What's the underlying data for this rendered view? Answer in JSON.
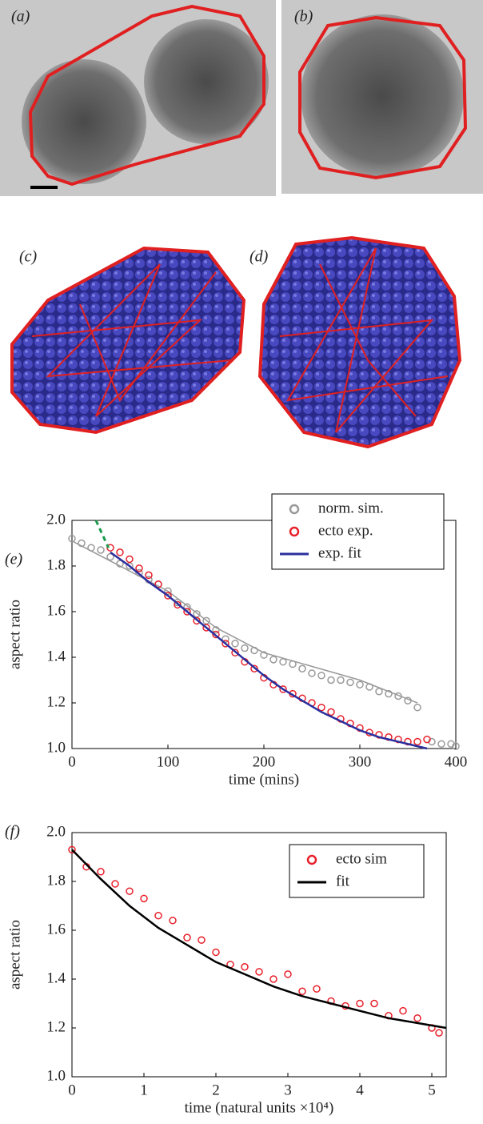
{
  "image_panels": [
    {
      "label": "(a)"
    },
    {
      "label": "(b)"
    },
    {
      "label": "(c)"
    },
    {
      "label": "(d)"
    }
  ],
  "chart_data": [
    {
      "type": "scatter",
      "panel_label": "(e)",
      "xlabel": "time (mins)",
      "ylabel": "aspect ratio",
      "xlim": [
        0,
        400
      ],
      "ylim": [
        1.0,
        2.0
      ],
      "xticks": [
        0,
        100,
        200,
        300,
        400
      ],
      "yticks": [
        {
          "value": 1.0,
          "label": "1.0"
        },
        {
          "value": 1.2,
          "label": "1.2"
        },
        {
          "value": 1.4,
          "label": "1.4"
        },
        {
          "value": 1.6,
          "label": "1.6"
        },
        {
          "value": 1.8,
          "label": "1.8"
        },
        {
          "value": 2.0,
          "label": "2.0"
        }
      ],
      "legend": "upper right",
      "series": [
        {
          "name": "norm. sim.",
          "color": "#999999",
          "mode": "markers",
          "x": [
            0,
            10,
            20,
            30,
            40,
            50,
            60,
            70,
            80,
            90,
            100,
            110,
            120,
            130,
            140,
            150,
            160,
            170,
            180,
            190,
            200,
            210,
            220,
            230,
            240,
            250,
            260,
            270,
            280,
            290,
            300,
            310,
            320,
            330,
            340,
            350,
            360,
            375,
            385,
            395,
            400
          ],
          "values": [
            1.92,
            1.9,
            1.88,
            1.87,
            1.84,
            1.81,
            1.8,
            1.77,
            1.74,
            1.72,
            1.69,
            1.64,
            1.62,
            1.59,
            1.56,
            1.52,
            1.48,
            1.46,
            1.44,
            1.43,
            1.41,
            1.39,
            1.38,
            1.37,
            1.35,
            1.33,
            1.32,
            1.3,
            1.3,
            1.29,
            1.28,
            1.27,
            1.25,
            1.24,
            1.23,
            1.21,
            1.18,
            1.03,
            1.02,
            1.02,
            1.01
          ]
        },
        {
          "color": "#999999",
          "mode": "line",
          "x": [
            0,
            100,
            150,
            200,
            300,
            360
          ],
          "values": [
            1.91,
            1.69,
            1.53,
            1.42,
            1.3,
            1.2
          ]
        },
        {
          "name": "ecto exp.",
          "color": "#e8202a",
          "mode": "markers",
          "x": [
            40,
            50,
            60,
            70,
            80,
            90,
            100,
            110,
            120,
            130,
            140,
            150,
            160,
            170,
            180,
            190,
            200,
            210,
            220,
            230,
            240,
            250,
            260,
            270,
            280,
            290,
            300,
            310,
            320,
            330,
            340,
            350,
            360,
            370
          ],
          "values": [
            1.88,
            1.86,
            1.83,
            1.79,
            1.76,
            1.72,
            1.67,
            1.63,
            1.6,
            1.56,
            1.53,
            1.5,
            1.46,
            1.42,
            1.38,
            1.35,
            1.31,
            1.28,
            1.26,
            1.24,
            1.22,
            1.2,
            1.18,
            1.16,
            1.13,
            1.11,
            1.09,
            1.07,
            1.06,
            1.05,
            1.04,
            1.03,
            1.03,
            1.04
          ]
        },
        {
          "name": "exp. fit",
          "color": "#2b2f9e",
          "mode": "line",
          "x": [
            40,
            60,
            80,
            100,
            120,
            140,
            160,
            180,
            200,
            220,
            240,
            260,
            280,
            300,
            320,
            340,
            370
          ],
          "values": [
            1.86,
            1.8,
            1.73,
            1.67,
            1.6,
            1.53,
            1.46,
            1.39,
            1.32,
            1.26,
            1.21,
            1.16,
            1.12,
            1.08,
            1.05,
            1.03,
            1.0
          ]
        },
        {
          "color": "#1a9a4a",
          "mode": "line",
          "dash": true,
          "x": [
            25,
            38
          ],
          "values": [
            2.0,
            1.88
          ]
        }
      ]
    },
    {
      "type": "scatter",
      "panel_label": "(f)",
      "xlabel": "time (natural units ×10⁴)",
      "ylabel": "aspect ratio",
      "xlim": [
        0,
        5.2
      ],
      "ylim": [
        1.0,
        2.0
      ],
      "xticks": [
        0,
        1,
        2,
        3,
        4,
        5
      ],
      "yticks": [
        {
          "value": 1.0,
          "label": "1.0"
        },
        {
          "value": 1.2,
          "label": "1.2"
        },
        {
          "value": 1.4,
          "label": "1.4"
        },
        {
          "value": 1.6,
          "label": "1.6"
        },
        {
          "value": 1.8,
          "label": "1.8"
        },
        {
          "value": 2.0,
          "label": "2.0"
        }
      ],
      "legend": "upper right",
      "series": [
        {
          "name": "ecto sim",
          "color": "#e8202a",
          "mode": "markers",
          "x": [
            0.0,
            0.2,
            0.4,
            0.6,
            0.8,
            1.0,
            1.2,
            1.4,
            1.6,
            1.8,
            2.0,
            2.2,
            2.4,
            2.6,
            2.8,
            3.0,
            3.2,
            3.4,
            3.6,
            3.8,
            4.0,
            4.2,
            4.4,
            4.6,
            4.8,
            5.0,
            5.1
          ],
          "values": [
            1.93,
            1.86,
            1.84,
            1.79,
            1.76,
            1.73,
            1.66,
            1.64,
            1.57,
            1.56,
            1.51,
            1.46,
            1.45,
            1.43,
            1.4,
            1.42,
            1.35,
            1.36,
            1.31,
            1.29,
            1.3,
            1.3,
            1.25,
            1.27,
            1.24,
            1.2,
            1.18
          ]
        },
        {
          "name": "fit",
          "color": "#000000",
          "mode": "line",
          "x": [
            0,
            0.4,
            0.8,
            1.2,
            1.6,
            2.0,
            2.4,
            2.8,
            3.2,
            3.6,
            4.0,
            4.4,
            4.8,
            5.2
          ],
          "values": [
            1.93,
            1.81,
            1.7,
            1.61,
            1.54,
            1.47,
            1.42,
            1.37,
            1.33,
            1.3,
            1.27,
            1.24,
            1.22,
            1.2
          ]
        }
      ]
    }
  ]
}
